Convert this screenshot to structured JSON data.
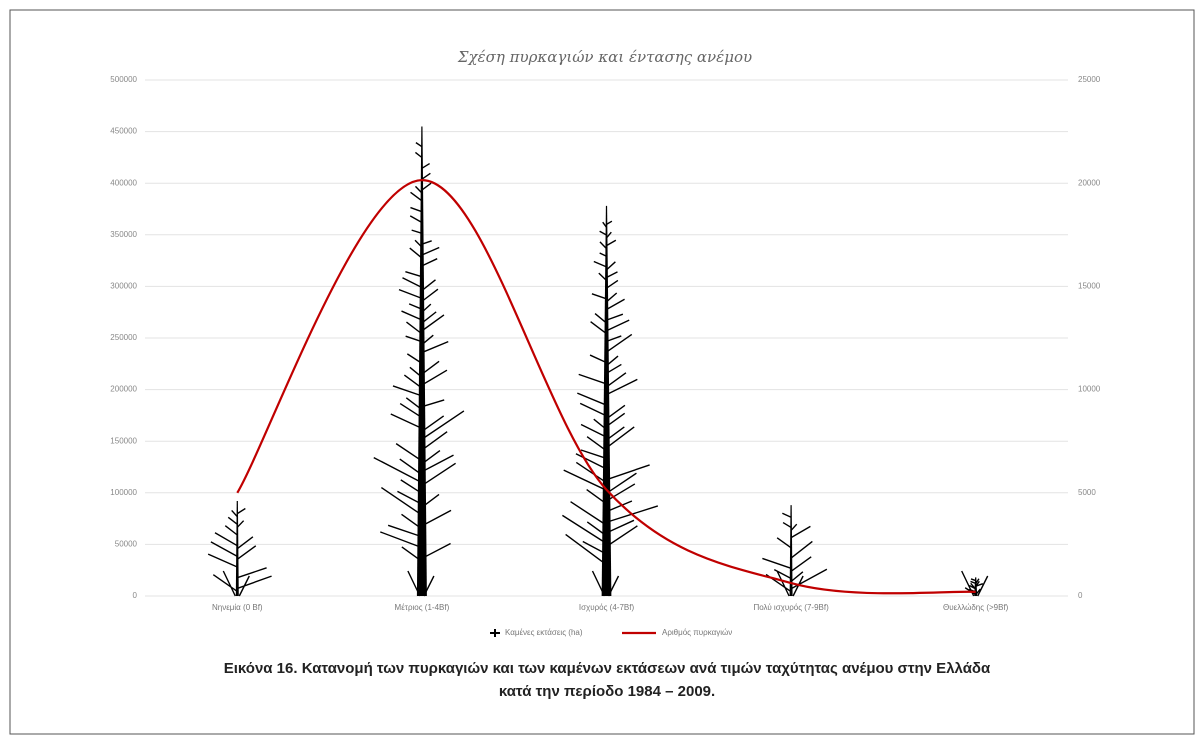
{
  "chart_data": {
    "type": "pictograph-bar-line",
    "title": "Σχέση πυρκαγιών και έντασης ανέμου",
    "categories": [
      "Νηνεμία (0 Bf)",
      "Μέτριος (1-4Bf)",
      "Ισχυρός (4-7Bf)",
      "Πολύ ισχυρός (7-9Bf)",
      "Θυελλώδης (>9Bf)"
    ],
    "series": [
      {
        "name": "Καμένες εκτάσεις (ha)",
        "color": "#000000",
        "values": [
          92000,
          455000,
          378000,
          88000,
          18000
        ]
      },
      {
        "name": "Αριθμός πυρκαγιών",
        "color": "#c00000",
        "axis": "y2",
        "values": [
          5000,
          20150,
          5150,
          625,
          200
        ]
      }
    ],
    "ylim": [
      0,
      500000
    ],
    "yticks": [
      0,
      50000,
      100000,
      150000,
      200000,
      250000,
      300000,
      350000,
      400000,
      450000,
      500000
    ],
    "y2lim": [
      0,
      25000
    ],
    "y2ticks": [
      0,
      5000,
      10000,
      15000,
      20000,
      25000
    ],
    "grid": true,
    "legend": "bottom"
  },
  "caption": [
    "Εικόνα 16. Κατανομή των πυρκαγιών και των καμένων εκτάσεων ανά τιμών ταχύτητας ανέμου στην Ελλάδα",
    "κατά την περίοδο 1984 – 2009."
  ]
}
